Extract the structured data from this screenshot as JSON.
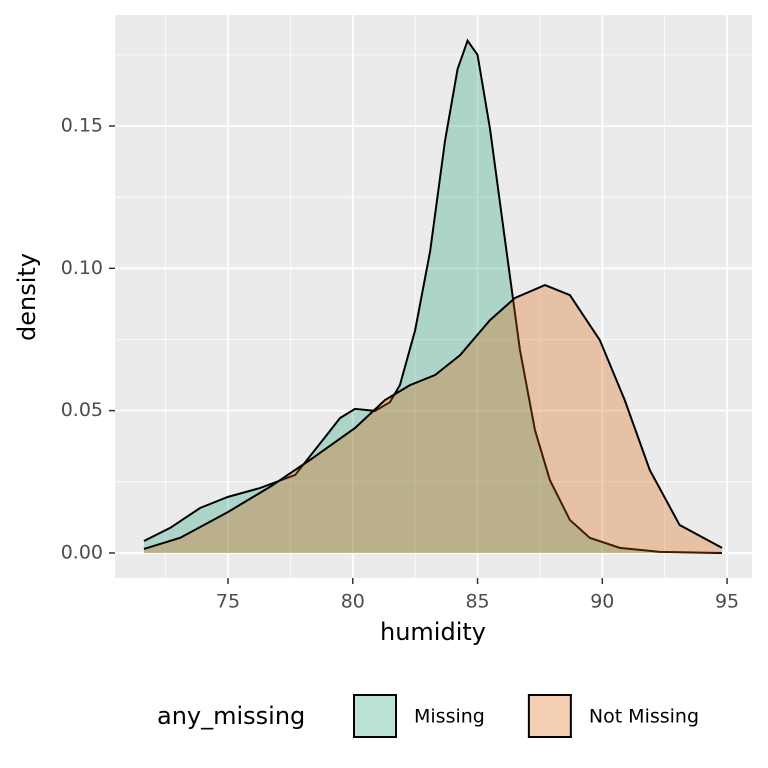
{
  "chart_data": {
    "type": "density",
    "x_label": "humidity",
    "y_label": "density",
    "xlim": [
      70.47,
      96.0
    ],
    "ylim": [
      -0.0088,
      0.189
    ],
    "xticks": [
      75,
      80,
      85,
      90,
      95
    ],
    "yticks": [
      {
        "value": 0,
        "label": "0.00"
      },
      {
        "value": 0.05,
        "label": "0.05"
      },
      {
        "value": 0.1,
        "label": "0.10"
      },
      {
        "value": 0.15,
        "label": "0.15"
      }
    ],
    "grid": true,
    "minor_grid": true,
    "legend_title": "any_missing",
    "legend_position": "bottom",
    "series": [
      {
        "name": "Missing",
        "color": "#1b9e77",
        "x": [
          71.63,
          72.68,
          73.88,
          75,
          76.28,
          77.69,
          78.89,
          79.49,
          80.09,
          80.89,
          81.49,
          81.89,
          82.5,
          83.1,
          83.7,
          84.2,
          84.6,
          85.0,
          85.5,
          86.1,
          86.7,
          87.3,
          87.9,
          88.7,
          89.5,
          90.7,
          92.3,
          94.8
        ],
        "values": [
          0.0042,
          0.0088,
          0.0158,
          0.0197,
          0.0228,
          0.0274,
          0.0407,
          0.0474,
          0.0506,
          0.0499,
          0.053,
          0.059,
          0.0783,
          0.106,
          0.145,
          0.17,
          0.18,
          0.175,
          0.149,
          0.11,
          0.0713,
          0.0432,
          0.0256,
          0.0116,
          0.0053,
          0.0018,
          0.0004,
          0
        ]
      },
      {
        "name": "Not Missing",
        "color": "#d95f02",
        "x": [
          71.63,
          73.08,
          75,
          76.68,
          78.29,
          80.09,
          81.29,
          82.3,
          83.3,
          84.3,
          85.5,
          86.5,
          87.7,
          88.7,
          89.9,
          90.9,
          91.9,
          93.1,
          94.8
        ],
        "values": [
          0.0014,
          0.0053,
          0.0144,
          0.0232,
          0.0327,
          0.0439,
          0.0537,
          0.059,
          0.0625,
          0.0695,
          0.0818,
          0.0896,
          0.0941,
          0.0906,
          0.0748,
          0.0537,
          0.0292,
          0.0098,
          0.0018
        ]
      }
    ]
  }
}
